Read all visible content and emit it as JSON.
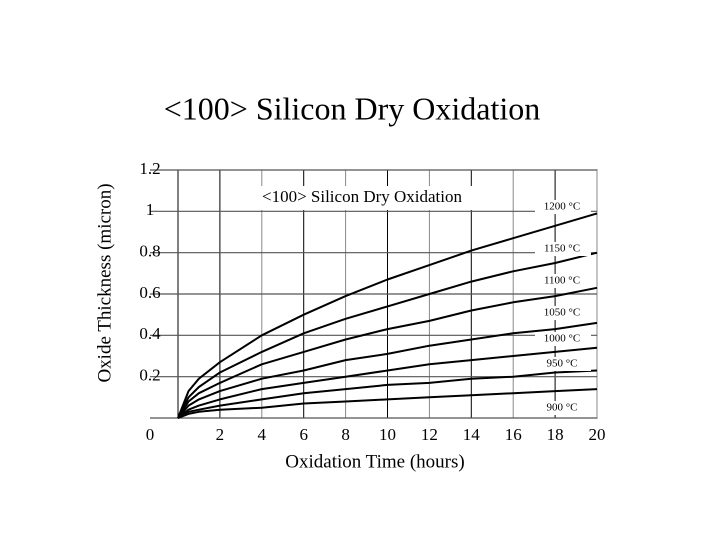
{
  "chart_data": {
    "type": "line",
    "title": "<100> Silicon Dry Oxidation",
    "annotation": "<100> Silicon Dry Oxidation",
    "x_label": "Oxidation Time (hours)",
    "y_label": "Oxide Thickness (micron)",
    "x": [
      0,
      0.5,
      1,
      2,
      4,
      6,
      8,
      10,
      12,
      14,
      16,
      18,
      20
    ],
    "series": [
      {
        "name": "1200 °C",
        "color": "#000000",
        "values": [
          0,
          0.13,
          0.19,
          0.27,
          0.4,
          0.5,
          0.59,
          0.67,
          0.74,
          0.81,
          0.87,
          0.93,
          0.99
        ]
      },
      {
        "name": "1150 °C",
        "color": "#000000",
        "values": [
          0,
          0.1,
          0.15,
          0.22,
          0.32,
          0.41,
          0.48,
          0.54,
          0.6,
          0.66,
          0.71,
          0.75,
          0.8
        ]
      },
      {
        "name": "1100 °C",
        "color": "#000000",
        "values": [
          0,
          0.08,
          0.12,
          0.17,
          0.26,
          0.32,
          0.38,
          0.43,
          0.47,
          0.52,
          0.56,
          0.59,
          0.63
        ]
      },
      {
        "name": "1050 °C",
        "color": "#000000",
        "values": [
          0,
          0.06,
          0.09,
          0.13,
          0.19,
          0.23,
          0.28,
          0.31,
          0.35,
          0.38,
          0.41,
          0.43,
          0.46
        ]
      },
      {
        "name": "1000 °C",
        "color": "#000000",
        "values": [
          0,
          0.04,
          0.06,
          0.09,
          0.14,
          0.17,
          0.2,
          0.23,
          0.26,
          0.28,
          0.3,
          0.32,
          0.34
        ]
      },
      {
        "name": "950 °C",
        "color": "#000000",
        "values": [
          0,
          0.03,
          0.04,
          0.06,
          0.09,
          0.12,
          0.14,
          0.16,
          0.17,
          0.19,
          0.2,
          0.22,
          0.23
        ]
      },
      {
        "name": "900 °C",
        "color": "#000000",
        "values": [
          0,
          0.02,
          0.03,
          0.04,
          0.05,
          0.07,
          0.08,
          0.09,
          0.1,
          0.11,
          0.12,
          0.13,
          0.14
        ]
      }
    ],
    "xlim": [
      0,
      20
    ],
    "xticks": [
      2,
      4,
      6,
      8,
      10,
      12,
      14,
      16,
      18,
      20
    ],
    "ylim": [
      0,
      1.2
    ],
    "yticks": [
      0,
      0.2,
      0.4,
      0.6,
      0.8,
      1.0,
      1.2
    ],
    "grid": true
  }
}
